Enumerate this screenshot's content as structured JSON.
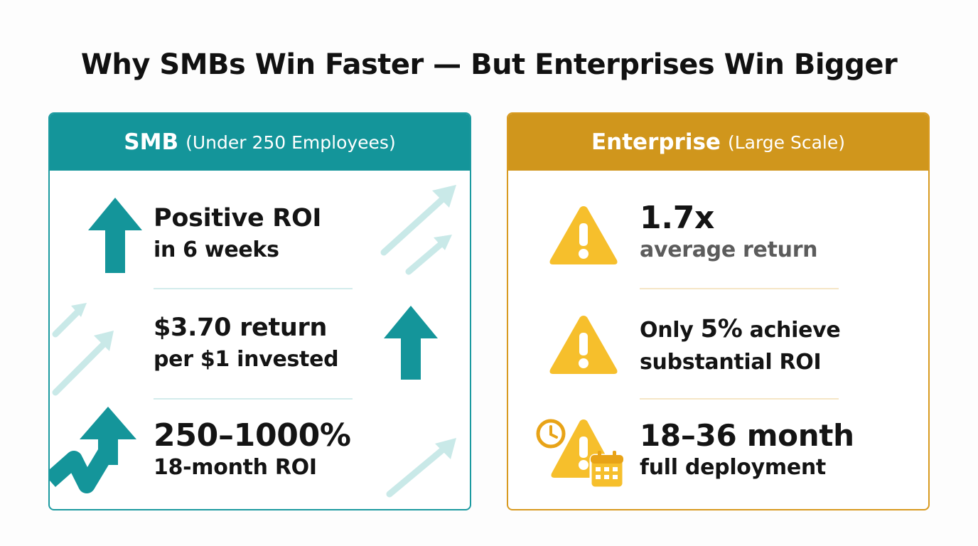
{
  "title": "Why SMBs Win Faster — But Enterprises Win Bigger",
  "colors": {
    "teal": "#14959a",
    "gold": "#d0961c",
    "warning_yellow": "#f6bf2c"
  },
  "smb": {
    "header": {
      "main": "SMB",
      "sub": "(Under 250 Employees)"
    },
    "items": [
      {
        "icon": "arrow-up-icon",
        "line1": "Positive ROI",
        "line2": "in 6 weeks"
      },
      {
        "icon": "arrow-up-icon",
        "line1": "$3.70 return",
        "line2": "per $1 invested"
      },
      {
        "icon": "trend-up-arrow-icon",
        "line1": "250–1000%",
        "line2": "18-month ROI"
      }
    ]
  },
  "enterprise": {
    "header": {
      "main": "Enterprise",
      "sub": "(Large Scale)"
    },
    "items": [
      {
        "icon": "warning-icon",
        "line1": "1.7x",
        "line2": "average return"
      },
      {
        "icon": "warning-icon",
        "line1_pre": "Only ",
        "line1_highlight": "5%",
        "line1_post": " achieve",
        "line2": "substantial ROI"
      },
      {
        "icon": "warning-clock-calendar-icon",
        "line1": "18–36 month",
        "line2": "full deployment"
      }
    ]
  }
}
